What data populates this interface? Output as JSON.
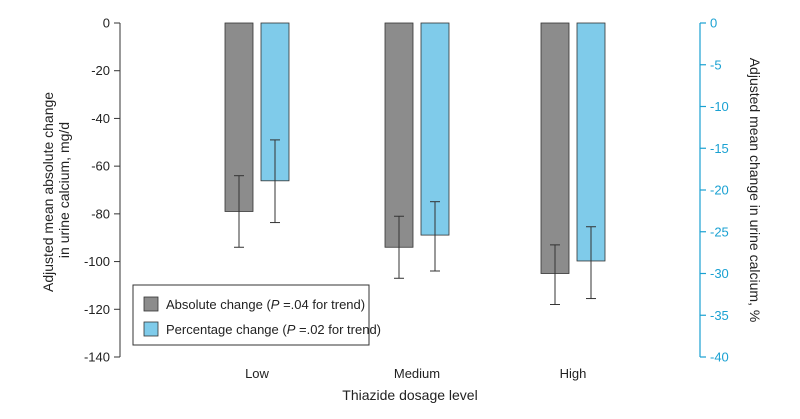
{
  "chart_data": {
    "type": "bar",
    "xlabel": "Thiazide dosage level",
    "ylabel_left": [
      "Adjusted mean absolute change",
      "in urine calcium, mg/d"
    ],
    "ylabel_right": "Adjusted mean change in urine calcium, %",
    "categories": [
      "Low",
      "Medium",
      "High"
    ],
    "ylim_left": [
      -140,
      0
    ],
    "ylim_right": [
      -40,
      0
    ],
    "yticks_left": [
      "0",
      "-20",
      "-40",
      "-60",
      "-80",
      "-100",
      "-120",
      "-140"
    ],
    "yticks_right": [
      "0",
      "-5",
      "-10",
      "-15",
      "-20",
      "-25",
      "-30",
      "-35",
      "-40"
    ],
    "series": [
      {
        "name": "Absolute change",
        "legend_prefix": "Absolute change (",
        "legend_p": "P",
        "legend_suffix": " =.04 for trend)",
        "axis": "left",
        "color": "#8c8c8c",
        "values": [
          -79,
          -94,
          -105
        ],
        "ci_low": [
          -94,
          -107,
          -118
        ],
        "ci_high": [
          -64,
          -81,
          -93
        ]
      },
      {
        "name": "Percentage change",
        "legend_prefix": "Percentage change (",
        "legend_p": "P",
        "legend_suffix": " =.02 for trend)",
        "axis": "right",
        "color": "#7fcbea",
        "values": [
          -18.9,
          -25.4,
          -28.5
        ],
        "ci_low": [
          -23.9,
          -29.7,
          -33.0
        ],
        "ci_high": [
          -14.0,
          -21.4,
          -24.4
        ]
      }
    ],
    "right_axis_color": "#1aa1d2"
  }
}
